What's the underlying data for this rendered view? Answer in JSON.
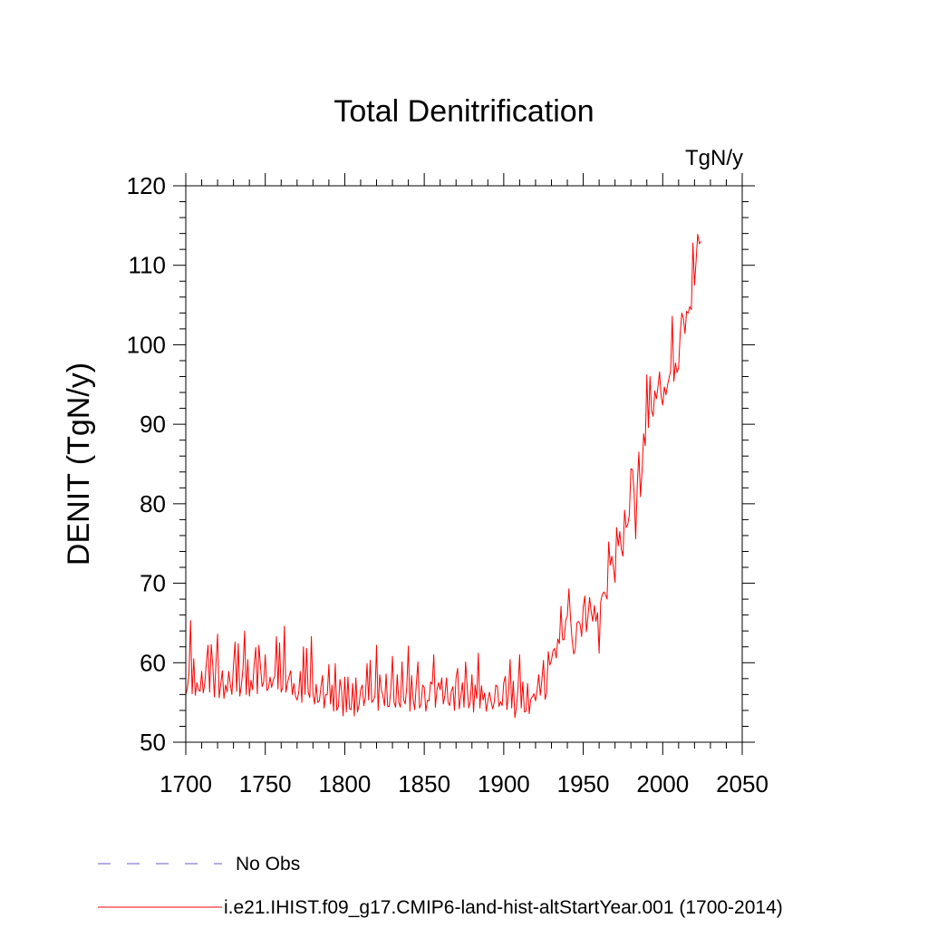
{
  "chart_data": {
    "type": "line",
    "title": "Total Denitrification",
    "units": "TgN/y",
    "ylabel": "DENIT  (TgN/y)",
    "xlabel": "",
    "xlim": [
      1700,
      2050
    ],
    "ylim": [
      50,
      120
    ],
    "x_ticks": [
      1700,
      1750,
      1800,
      1850,
      1900,
      1950,
      2000,
      2050
    ],
    "y_ticks": [
      50,
      60,
      70,
      80,
      90,
      100,
      110,
      120
    ],
    "grid": false,
    "legend_position": "bottom",
    "series": [
      {
        "name": "No Obs",
        "color": "#6a5acd",
        "dash": "dashed",
        "x": [],
        "y": []
      },
      {
        "name": "i.e21.IHIST.f09_g17.CMIP6-land-hist-altStartYear.001 (1700-2014)",
        "color": "#ff0000",
        "dash": "solid",
        "x_start": 1700,
        "x_step": 1,
        "y": [
          56.0,
          56.8,
          58.6,
          65.3,
          56.1,
          60.5,
          55.9,
          57.5,
          56.6,
          56.4,
          58.9,
          56.2,
          57.5,
          60.1,
          62.2,
          56.3,
          62.3,
          59.6,
          55.7,
          60.0,
          63.6,
          55.6,
          57.3,
          59.0,
          55.5,
          57.2,
          56.3,
          58.9,
          57.3,
          56.0,
          59.7,
          62.6,
          56.4,
          62.4,
          55.8,
          57.2,
          59.3,
          64.0,
          56.0,
          60.4,
          55.8,
          57.8,
          56.6,
          59.8,
          61.9,
          56.1,
          62.2,
          59.5,
          57.0,
          57.6,
          61.0,
          56.5,
          56.8,
          58.2,
          56.9,
          57.8,
          58.3,
          63.3,
          56.7,
          62.5,
          56.3,
          56.9,
          64.6,
          56.3,
          57.5,
          58.3,
          59.0,
          56.0,
          57.4,
          55.8,
          55.3,
          56.2,
          58.9,
          55.0,
          62.0,
          56.0,
          61.8,
          56.3,
          55.6,
          63.3,
          56.1,
          54.8,
          57.3,
          55.0,
          55.2,
          56.9,
          58.4,
          54.3,
          56.0,
          56.0,
          59.8,
          54.8,
          57.2,
          53.9,
          59.9,
          54.0,
          54.5,
          57.9,
          56.5,
          53.3,
          58.2,
          53.8,
          58.2,
          54.2,
          54.1,
          57.4,
          53.3,
          58.1,
          53.8,
          54.7,
          56.6,
          57.2,
          54.6,
          55.7,
          59.9,
          55.3,
          60.3,
          55.0,
          55.3,
          55.8,
          62.2,
          54.0,
          58.5,
          56.6,
          55.8,
          54.6,
          58.6,
          54.5,
          54.5,
          56.7,
          60.8,
          55.0,
          54.4,
          58.5,
          55.0,
          54.4,
          60.1,
          55.4,
          54.8,
          56.9,
          62.1,
          53.9,
          58.4,
          55.4,
          54.1,
          57.3,
          60.1,
          54.3,
          54.8,
          57.2,
          56.9,
          53.9,
          55.3,
          55.2,
          57.6,
          57.3,
          61.0,
          54.4,
          56.6,
          57.5,
          56.6,
          58.1,
          54.8,
          55.9,
          58.1,
          55.0,
          54.6,
          56.4,
          57.0,
          54.0,
          58.1,
          59.3,
          54.2,
          55.8,
          57.5,
          54.4,
          60.1,
          57.0,
          54.3,
          55.2,
          58.5,
          53.8,
          57.2,
          55.5,
          61.2,
          54.3,
          57.1,
          55.3,
          56.2,
          53.9,
          55.2,
          56.3,
          55.2,
          54.2,
          55.0,
          57.2,
          57.0,
          54.5,
          55.1,
          54.6,
          57.5,
          58.3,
          54.1,
          56.2,
          60.4,
          54.3,
          57.7,
          53.1,
          54.4,
          56.9,
          61.0,
          54.3,
          57.6,
          53.8,
          53.9,
          57.4,
          53.6,
          55.4,
          55.7,
          56.1,
          55.2,
          56.6,
          58.5,
          55.9,
          57.8,
          60.3,
          55.4,
          56.2,
          61.4,
          59.7,
          60.3,
          61.5,
          61.8,
          60.6,
          63.0,
          62.4,
          67.1,
          62.9,
          62.9,
          65.3,
          65.9,
          69.3,
          65.6,
          62.9,
          61.1,
          61.7,
          65.0,
          65.2,
          64.9,
          63.3,
          67.0,
          68.4,
          63.9,
          65.9,
          68.2,
          66.4,
          65.2,
          67.2,
          65.2,
          66.3,
          61.2,
          67.7,
          68.6,
          68.9,
          68.6,
          68.0,
          75.2,
          72.3,
          73.4,
          72.0,
          70.1,
          77.0,
          74.7,
          76.5,
          74.2,
          73.4,
          79.2,
          77.0,
          77.4,
          78.6,
          84.4,
          84.3,
          81.4,
          75.6,
          82.4,
          86.5,
          80.9,
          84.1,
          88.8,
          87.3,
          96.2,
          89.6,
          96.0,
          91.7,
          91.0,
          94.2,
          93.2,
          94.7,
          96.6,
          93.5,
          92.4,
          94.7,
          93.7,
          94.9,
          95.8,
          96.8,
          103.6,
          95.4,
          97.7,
          96.5,
          97.1,
          101.5,
          104.0,
          103.3,
          101.4,
          104.2,
          104.0,
          104.8,
          104.4,
          112.8,
          107.5,
          110.6,
          113.9,
          112.7,
          113.0
        ]
      }
    ]
  }
}
